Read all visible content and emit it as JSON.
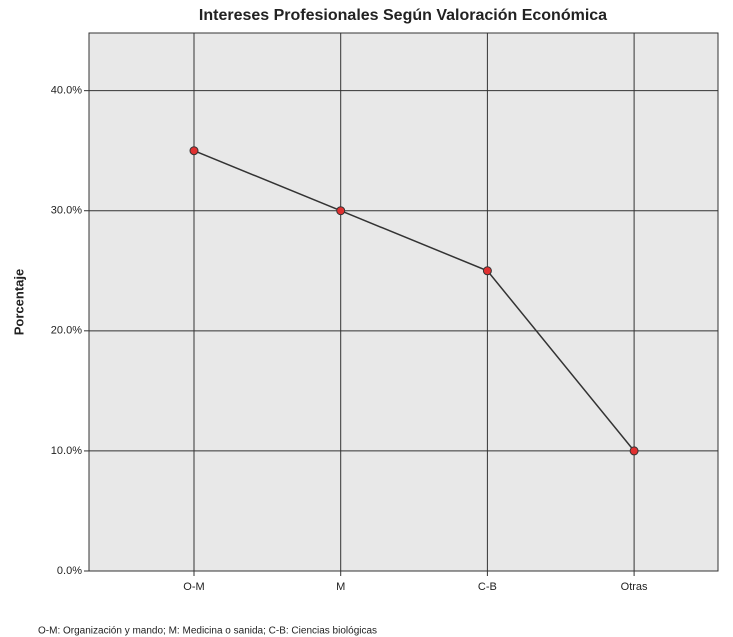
{
  "chart_data": {
    "type": "line",
    "title": "Intereses Profesionales Según Valoración Económica",
    "y_label": "Porcentaje",
    "note": "O-M: Organización y mando; M: Medicina o sanida; C-B: Ciencias biológicas",
    "categories": [
      "O-M",
      "M",
      "C-B",
      "Otras"
    ],
    "values": [
      35,
      30,
      25,
      10
    ],
    "color": "#333333",
    "marker_color": "#e03030",
    "ylim": [
      0,
      44.8
    ],
    "yticks": [
      {
        "value": 0,
        "label": "0.0%"
      },
      {
        "value": 10,
        "label": "10.0%"
      },
      {
        "value": 20,
        "label": "20.0%"
      },
      {
        "value": 30,
        "label": "30.0%"
      },
      {
        "value": 40,
        "label": "40.0%"
      }
    ],
    "grid": true
  }
}
